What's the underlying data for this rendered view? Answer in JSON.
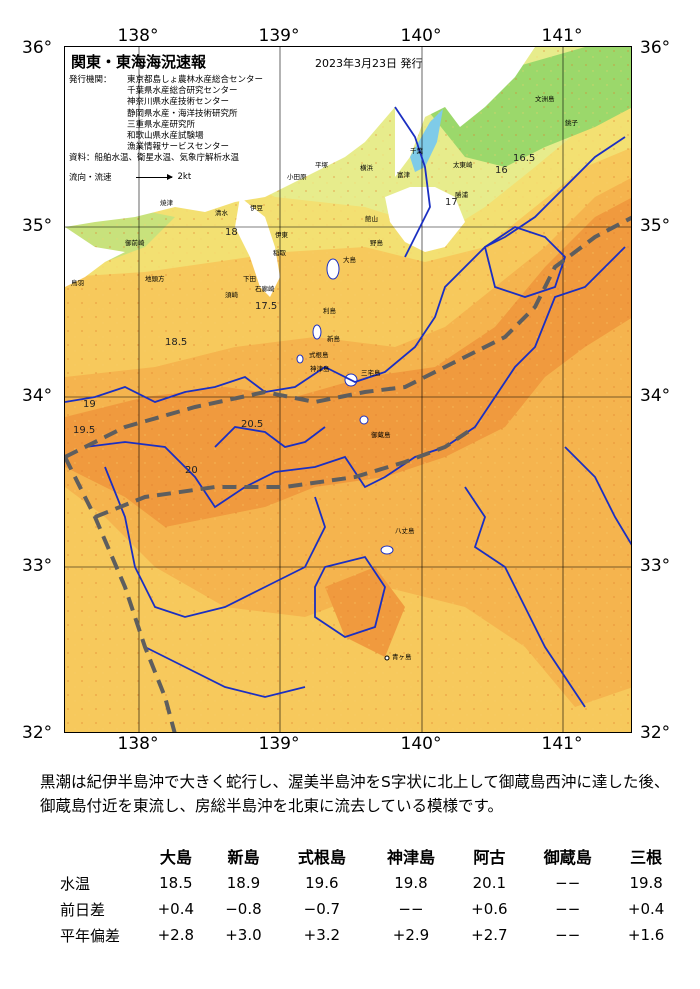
{
  "map": {
    "title": "関東・東海海況速報",
    "date_text": "2023年3月23日 発行",
    "credits_label": "発行機関：",
    "credits": [
      "東京都島しょ農林水産総合センター",
      "千葉県水産総合研究センター",
      "神奈川県水産技術センター",
      "静岡県水産・海洋技術研究所",
      "三重県水産研究所",
      "和歌山県水産試験場",
      "漁業情報サービスセンター"
    ],
    "sources": "資料：船舶水温、衛星水温、気象庁解析水温",
    "flow_label": "流向・流速",
    "flow_speed": "2kt",
    "lon_labels": [
      "138°",
      "139°",
      "140°",
      "141°"
    ],
    "lat_labels": [
      "36°",
      "35°",
      "34°",
      "33°",
      "32°"
    ],
    "places": [
      "文洲島",
      "銚子",
      "太東崎",
      "勝浦",
      "平塚",
      "横浜",
      "館山",
      "富津",
      "小田原",
      "千葉",
      "野島",
      "大島",
      "伊東",
      "稲取",
      "石廊崎",
      "新島",
      "三宅島",
      "御蔵島",
      "八丈島",
      "利島",
      "式根島",
      "神津島",
      "青ヶ島",
      "御前崎",
      "地頭方",
      "焼津",
      "清水",
      "伊豆",
      "下田",
      "須崎",
      "鳥羽"
    ],
    "contour_labels": [
      "16",
      "16.5",
      "17",
      "17.5",
      "18",
      "18.5",
      "19",
      "19.5",
      "20",
      "20.5"
    ],
    "colors": {
      "warm_core": "#f09a3e",
      "warm": "#f5b44e",
      "mild": "#f7c95c",
      "cool": "#f3e072",
      "cold": "#e7ec8c",
      "coast_green": "#9bd86b",
      "land": "#ffffff",
      "contour": "#1b2fc2",
      "kuroshio_axis": "#5e5e5e"
    }
  },
  "summary": "黒潮は紀伊半島沖で大きく蛇行し、渥美半島沖をS字状に北上して御蔵島西沖に達した後、御蔵島付近を東流し、房総半島沖を北東に流去している模様です。",
  "observations": {
    "headers": [
      "",
      "大島",
      "新島",
      "式根島",
      "神津島",
      "阿古",
      "御蔵島",
      "三根"
    ],
    "rows": [
      {
        "label": "水温",
        "values": [
          "18.5",
          "18.9",
          "19.6",
          "19.8",
          "20.1",
          "−−",
          "19.8"
        ]
      },
      {
        "label": "前日差",
        "values": [
          "+0.4",
          "−0.8",
          "−0.7",
          "−−",
          "+0.6",
          "−−",
          "+0.4"
        ]
      },
      {
        "label": "平年偏差",
        "values": [
          "+2.8",
          "+3.0",
          "+3.2",
          "+2.9",
          "+2.7",
          "−−",
          "+1.6"
        ]
      }
    ]
  }
}
